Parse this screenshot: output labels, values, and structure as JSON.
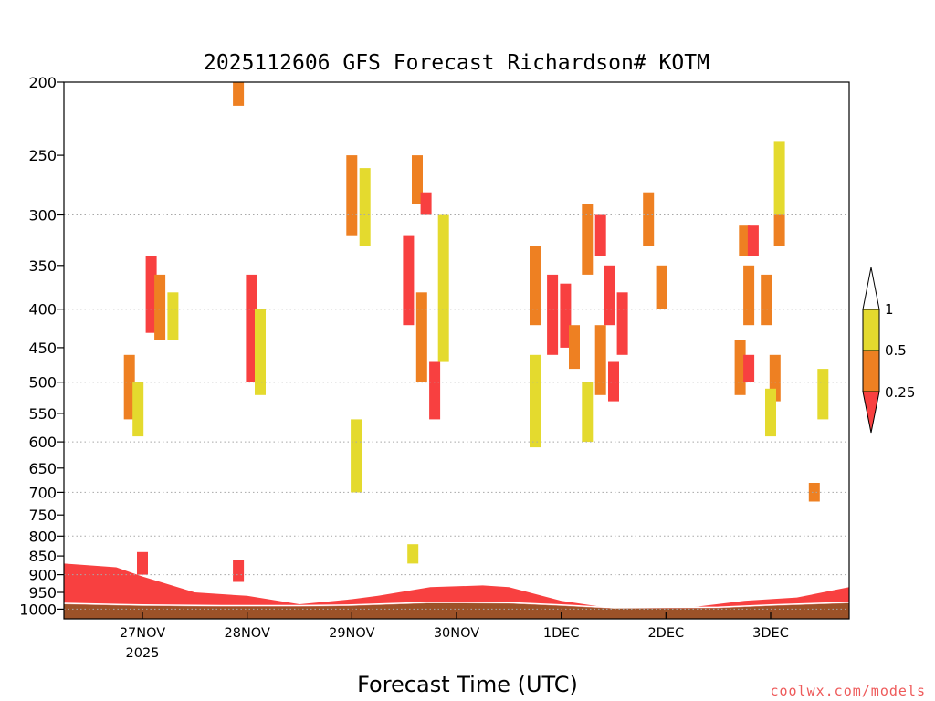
{
  "colors": {
    "yellow": "#e4da2e",
    "orange": "#ee8022",
    "red": "#f84040",
    "ground": "#9c5228",
    "grid": "#a8a8a8"
  },
  "credit": "coolwx.com/models",
  "chart_data": {
    "type": "heatmap",
    "title": "2025112606 GFS Forecast Richardson# KOTM",
    "xlabel": "Forecast Time (UTC)",
    "ylabel": "",
    "y_scale": "log-pressure (hPa), inverted",
    "ylim": [
      1000,
      200
    ],
    "y_ticks": [
      200,
      250,
      300,
      350,
      400,
      450,
      500,
      550,
      600,
      650,
      700,
      750,
      800,
      850,
      900,
      950,
      1000
    ],
    "y_grid_levels": [
      300,
      400,
      500,
      600,
      700,
      800,
      900,
      1000
    ],
    "xlim_hours_utc": [
      "2025-11-26 06Z",
      "2025-12-03 18Z"
    ],
    "x_ticks": [
      {
        "label": "27NOV",
        "sub": "2025",
        "time": "2025-11-27 00Z"
      },
      {
        "label": "28NOV",
        "sub": "",
        "time": "2025-11-28 00Z"
      },
      {
        "label": "29NOV",
        "sub": "",
        "time": "2025-11-29 00Z"
      },
      {
        "label": "30NOV",
        "sub": "",
        "time": "2025-11-30 00Z"
      },
      {
        "label": "1DEC",
        "sub": "",
        "time": "2025-12-01 00Z"
      },
      {
        "label": "2DEC",
        "sub": "",
        "time": "2025-12-02 00Z"
      },
      {
        "label": "3DEC",
        "sub": "",
        "time": "2025-12-03 00Z"
      }
    ],
    "grid": "dotted horizontal",
    "colorbar": {
      "labels": [
        "1",
        "0.5",
        "0.25"
      ],
      "bins": [
        {
          "range": "> 1",
          "color": "white"
        },
        {
          "range": "0.5 - 1",
          "color": "yellow"
        },
        {
          "range": "0.25 - 0.5",
          "color": "orange"
        },
        {
          "range": "< 0.25",
          "color": "red"
        }
      ],
      "placement": "right"
    },
    "surface_pressure_hpa": [
      {
        "time": "2025-11-26 06Z",
        "p": 985
      },
      {
        "time": "2025-11-27 00Z",
        "p": 990
      },
      {
        "time": "2025-11-27 18Z",
        "p": 992
      },
      {
        "time": "2025-11-28 12Z",
        "p": 992
      },
      {
        "time": "2025-11-29 00Z",
        "p": 990
      },
      {
        "time": "2025-11-29 18Z",
        "p": 982
      },
      {
        "time": "2025-11-30 12Z",
        "p": 983
      },
      {
        "time": "2025-12-01 00Z",
        "p": 990
      },
      {
        "time": "2025-12-01 12Z",
        "p": 998
      },
      {
        "time": "2025-12-02 12Z",
        "p": 997
      },
      {
        "time": "2025-12-03 00Z",
        "p": 990
      },
      {
        "time": "2025-12-03 18Z",
        "p": 982
      }
    ],
    "boundary_layer_red_top_hpa": [
      {
        "time": "2025-11-26 06Z",
        "p": 870
      },
      {
        "time": "2025-11-26 18Z",
        "p": 880
      },
      {
        "time": "2025-11-27 00Z",
        "p": 905
      },
      {
        "time": "2025-11-27 12Z",
        "p": 950
      },
      {
        "time": "2025-11-28 00Z",
        "p": 960
      },
      {
        "time": "2025-11-28 12Z",
        "p": 985
      },
      {
        "time": "2025-11-29 00Z",
        "p": 970
      },
      {
        "time": "2025-11-29 06Z",
        "p": 960
      },
      {
        "time": "2025-11-29 18Z",
        "p": 935
      },
      {
        "time": "2025-11-30 06Z",
        "p": 930
      },
      {
        "time": "2025-11-30 12Z",
        "p": 935
      },
      {
        "time": "2025-12-01 00Z",
        "p": 975
      },
      {
        "time": "2025-12-01 12Z",
        "p": 998
      },
      {
        "time": "2025-12-02 06Z",
        "p": 994
      },
      {
        "time": "2025-12-02 18Z",
        "p": 975
      },
      {
        "time": "2025-12-03 06Z",
        "p": 965
      },
      {
        "time": "2025-12-03 18Z",
        "p": 935
      }
    ],
    "stability_patches": [
      {
        "time": "2025-11-26 21Z",
        "p": [
          460,
          560
        ],
        "ri": "0.25-0.5"
      },
      {
        "time": "2025-11-26 23Z",
        "p": [
          500,
          590
        ],
        "ri": "0.5-1"
      },
      {
        "time": "2025-11-27 02Z",
        "p": [
          340,
          430
        ],
        "ri": "<0.25"
      },
      {
        "time": "2025-11-27 04Z",
        "p": [
          360,
          440
        ],
        "ri": "0.25-0.5"
      },
      {
        "time": "2025-11-27 07Z",
        "p": [
          380,
          440
        ],
        "ri": "0.5-1"
      },
      {
        "time": "2025-11-27 00Z",
        "p": [
          840,
          900
        ],
        "ri": "<0.25"
      },
      {
        "time": "2025-11-28 01Z",
        "p": [
          360,
          500
        ],
        "ri": "<0.25"
      },
      {
        "time": "2025-11-28 03Z",
        "p": [
          400,
          520
        ],
        "ri": "0.5-1"
      },
      {
        "time": "2025-11-27 22Z",
        "p": [
          200,
          215
        ],
        "ri": "0.25-0.5"
      },
      {
        "time": "2025-11-27 22Z",
        "p": [
          860,
          920
        ],
        "ri": "<0.25"
      },
      {
        "time": "2025-11-29 00Z",
        "p": [
          250,
          320
        ],
        "ri": "0.25-0.5"
      },
      {
        "time": "2025-11-29 03Z",
        "p": [
          260,
          330
        ],
        "ri": "0.5-1"
      },
      {
        "time": "2025-11-29 01Z",
        "p": [
          560,
          700
        ],
        "ri": "0.5-1"
      },
      {
        "time": "2025-11-29 15Z",
        "p": [
          250,
          290
        ],
        "ri": "0.25-0.5"
      },
      {
        "time": "2025-11-29 17Z",
        "p": [
          280,
          300
        ],
        "ri": "<0.25"
      },
      {
        "time": "2025-11-29 13Z",
        "p": [
          320,
          420
        ],
        "ri": "<0.25"
      },
      {
        "time": "2025-11-29 16Z",
        "p": [
          380,
          500
        ],
        "ri": "0.25-0.5"
      },
      {
        "time": "2025-11-29 19Z",
        "p": [
          470,
          560
        ],
        "ri": "<0.25"
      },
      {
        "time": "2025-11-29 14Z",
        "p": [
          820,
          870
        ],
        "ri": "0.5-1"
      },
      {
        "time": "2025-11-29 21Z",
        "p": [
          300,
          470
        ],
        "ri": "0.5-1"
      },
      {
        "time": "2025-11-30 18Z",
        "p": [
          330,
          420
        ],
        "ri": "0.25-0.5"
      },
      {
        "time": "2025-11-30 22Z",
        "p": [
          360,
          460
        ],
        "ri": "<0.25"
      },
      {
        "time": "2025-12-01 01Z",
        "p": [
          370,
          450
        ],
        "ri": "<0.25"
      },
      {
        "time": "2025-12-01 03Z",
        "p": [
          420,
          480
        ],
        "ri": "0.25-0.5"
      },
      {
        "time": "2025-11-30 18Z",
        "p": [
          460,
          610
        ],
        "ri": "0.5-1"
      },
      {
        "time": "2025-12-01 06Z",
        "p": [
          290,
          330
        ],
        "ri": "0.25-0.5"
      },
      {
        "time": "2025-12-01 09Z",
        "p": [
          300,
          340
        ],
        "ri": "<0.25"
      },
      {
        "time": "2025-12-01 06Z",
        "p": [
          330,
          360
        ],
        "ri": "0.25-0.5"
      },
      {
        "time": "2025-12-01 11Z",
        "p": [
          350,
          420
        ],
        "ri": "<0.25"
      },
      {
        "time": "2025-12-01 14Z",
        "p": [
          380,
          460
        ],
        "ri": "<0.25"
      },
      {
        "time": "2025-12-01 09Z",
        "p": [
          420,
          520
        ],
        "ri": "0.25-0.5"
      },
      {
        "time": "2025-12-01 12Z",
        "p": [
          470,
          530
        ],
        "ri": "<0.25"
      },
      {
        "time": "2025-12-01 06Z",
        "p": [
          500,
          600
        ],
        "ri": "0.5-1"
      },
      {
        "time": "2025-12-01 20Z",
        "p": [
          280,
          330
        ],
        "ri": "0.25-0.5"
      },
      {
        "time": "2025-12-01 23Z",
        "p": [
          350,
          400
        ],
        "ri": "0.25-0.5"
      },
      {
        "time": "2025-12-02 18Z",
        "p": [
          310,
          340
        ],
        "ri": "0.25-0.5"
      },
      {
        "time": "2025-12-02 20Z",
        "p": [
          310,
          340
        ],
        "ri": "<0.25"
      },
      {
        "time": "2025-12-02 19Z",
        "p": [
          350,
          420
        ],
        "ri": "0.25-0.5"
      },
      {
        "time": "2025-12-02 17Z",
        "p": [
          440,
          520
        ],
        "ri": "0.25-0.5"
      },
      {
        "time": "2025-12-02 19Z",
        "p": [
          460,
          500
        ],
        "ri": "<0.25"
      },
      {
        "time": "2025-12-02 23Z",
        "p": [
          360,
          420
        ],
        "ri": "0.25-0.5"
      },
      {
        "time": "2025-12-03 02Z",
        "p": [
          300,
          330
        ],
        "ri": "0.25-0.5"
      },
      {
        "time": "2025-12-03 02Z",
        "p": [
          240,
          300
        ],
        "ri": "0.5-1"
      },
      {
        "time": "2025-12-03 01Z",
        "p": [
          460,
          530
        ],
        "ri": "0.25-0.5"
      },
      {
        "time": "2025-12-03 00Z",
        "p": [
          510,
          590
        ],
        "ri": "0.5-1"
      },
      {
        "time": "2025-12-03 12Z",
        "p": [
          480,
          560
        ],
        "ri": "0.5-1"
      },
      {
        "time": "2025-12-03 10Z",
        "p": [
          680,
          720
        ],
        "ri": "0.25-0.5"
      }
    ]
  }
}
